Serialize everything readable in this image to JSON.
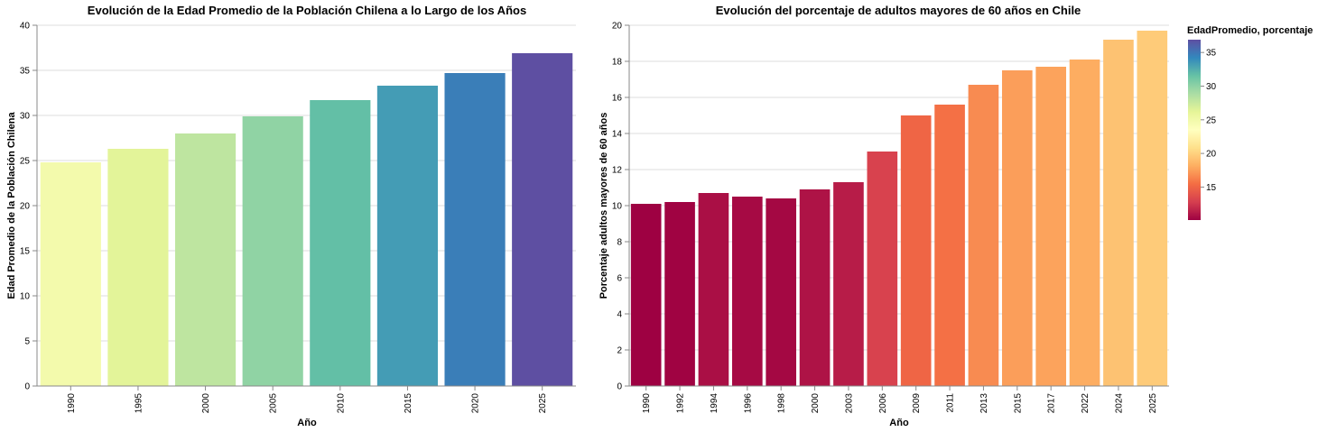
{
  "chart_data": [
    {
      "type": "bar",
      "title": "Evolución de la Edad Promedio de la Población Chilena a lo Largo de los Años",
      "xlabel": "Año",
      "ylabel": "Edad Promedio de la Población Chilena",
      "categories": [
        "1990",
        "1995",
        "2000",
        "2005",
        "2010",
        "2015",
        "2020",
        "2025"
      ],
      "values": [
        24.8,
        26.3,
        28.0,
        29.9,
        31.7,
        33.3,
        34.7,
        36.9
      ],
      "ylim": [
        0,
        40
      ],
      "yticks": [
        0,
        5,
        10,
        15,
        20,
        25,
        30,
        35,
        40
      ],
      "grid": true,
      "color_scheme": "spectral"
    },
    {
      "type": "bar",
      "title": "Evolución del porcentaje de adultos mayores de 60 años en Chile",
      "xlabel": "Año",
      "ylabel": "Porcentaje adultos mayores de 60 años",
      "categories": [
        "1990",
        "1992",
        "1994",
        "1996",
        "1998",
        "2000",
        "2003",
        "2006",
        "2009",
        "2011",
        "2013",
        "2015",
        "2017",
        "2022",
        "2024",
        "2025"
      ],
      "values": [
        10.1,
        10.2,
        10.7,
        10.5,
        10.4,
        10.9,
        11.3,
        13.0,
        15.0,
        15.6,
        16.7,
        17.5,
        17.7,
        18.1,
        19.2,
        19.7
      ],
      "ylim": [
        0,
        20
      ],
      "yticks": [
        0,
        2,
        4,
        6,
        8,
        10,
        12,
        14,
        16,
        18,
        20
      ],
      "grid": true,
      "color_scheme": "spectral"
    }
  ],
  "legend": {
    "title": "EdadPromedio, porcentaje",
    "placement": "right",
    "domain": [
      10.1,
      36.9
    ],
    "ticks": [
      15,
      20,
      25,
      30,
      35
    ]
  }
}
